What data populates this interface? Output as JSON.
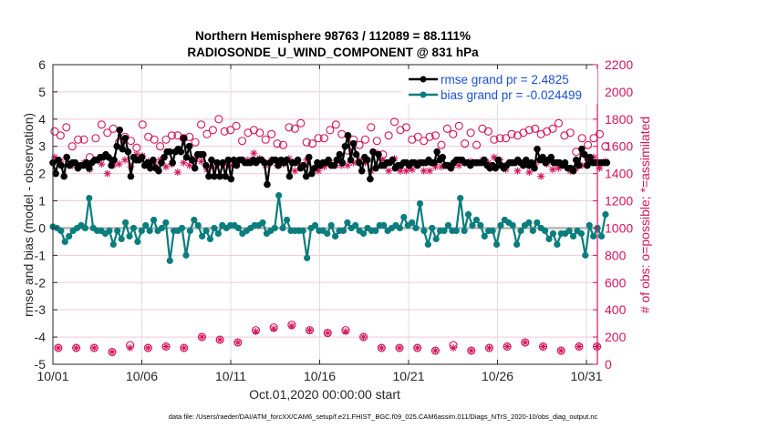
{
  "chart_data": {
    "type": "line",
    "title": [
      "Northern Hemisphere 98763 / 112089 = 88.111%",
      "RADIOSONDE_U_WIND_COMPONENT @ 831 hPa"
    ],
    "xlabel": "Oct.01,2020 00:00:00 start",
    "ylabel": "rmse and bias (model - observation)",
    "ylabel_right": "# of obs: o=possible; *=assimilated",
    "footnote": "data file: /Users/raeder/DAI/ATM_forcXX/CAM6_setup/f.e21.FHIST_BGC.f09_025.CAM6assim.011/Diags_NTrS_2020-10/obs_diag_output.nc",
    "xlim_days": [
      0,
      31.3
    ],
    "ylim": [
      -5,
      6
    ],
    "ylim_right": [
      0,
      2200
    ],
    "x_ticks": [
      {
        "day": 0,
        "label": "10/01"
      },
      {
        "day": 5,
        "label": "10/06"
      },
      {
        "day": 10,
        "label": "10/11"
      },
      {
        "day": 15,
        "label": "10/16"
      },
      {
        "day": 20,
        "label": "10/21"
      },
      {
        "day": 25,
        "label": "10/26"
      },
      {
        "day": 30,
        "label": "10/31"
      }
    ],
    "y_ticks": [
      "-5",
      "-4",
      "-3",
      "-2",
      "-1",
      "0",
      "1",
      "2",
      "3",
      "4",
      "5",
      "6"
    ],
    "y_ticks_right": [
      "0",
      "200",
      "400",
      "600",
      "800",
      "1000",
      "1200",
      "1400",
      "1600",
      "1800",
      "2000",
      "2200"
    ],
    "grid": true,
    "legend_position": "top-right",
    "legend": [
      {
        "label": "rmse grand pr = 2.4825",
        "color": "#000000"
      },
      {
        "label": "bias grand pr = -0.024499",
        "color": "#008080"
      }
    ],
    "colors": {
      "rmse": "#000000",
      "bias": "#0a7d7d",
      "obs": "#d4145a",
      "zero_line": "#b3b3b3",
      "grid": "#f0c9d8"
    },
    "series": [
      {
        "name": "rmse",
        "step_days": 0.25,
        "values": [
          2.4,
          2.0,
          2.5,
          2.3,
          1.9,
          2.6,
          2.3,
          2.4,
          2.4,
          2.2,
          2.3,
          2.3,
          2.4,
          2.2,
          2.4,
          2.5,
          2.5,
          2.6,
          2.6,
          2.7,
          2.6,
          2.3,
          2.5,
          3.0,
          3.6,
          2.9,
          3.3,
          2.8,
          1.9,
          2.6,
          2.5,
          2.5,
          2.6,
          2.3,
          2.4,
          2.2,
          2.5,
          2.2,
          2.1,
          2.4,
          2.6,
          2.8,
          2.8,
          2.4,
          2.8,
          2.9,
          2.8,
          3.3,
          2.6,
          3.0,
          2.5,
          2.2,
          2.7,
          2.7,
          2.7,
          2.3,
          1.9,
          2.5,
          1.9,
          2.4,
          1.9,
          2.4,
          1.9,
          2.5,
          1.8,
          2.5,
          2.3,
          2.5,
          2.5,
          2.4,
          2.4,
          2.4,
          2.5,
          2.4,
          2.5,
          2.5,
          2.4,
          1.6,
          2.4,
          2.5,
          2.5,
          2.3,
          2.5,
          2.4,
          2.5,
          1.9,
          2.4,
          2.4,
          2.5,
          2.2,
          2.3,
          1.9,
          2.6,
          2.0,
          2.2,
          2.4,
          2.3,
          2.4,
          2.4,
          2.5,
          2.3,
          2.3,
          2.5,
          2.7,
          2.4,
          3.0,
          3.4,
          2.5,
          3.1,
          2.7,
          2.4,
          2.1,
          2.6,
          2.5,
          1.8,
          2.8,
          2.2,
          2.7,
          2.3,
          2.3,
          2.4,
          2.4,
          2.5,
          2.2,
          2.3,
          2.3,
          2.4,
          2.4,
          2.3,
          2.4,
          2.4,
          2.3,
          2.4,
          2.4,
          2.4,
          2.5,
          2.4,
          2.4,
          2.8,
          2.5,
          2.6,
          2.3,
          2.3,
          2.2,
          2.4,
          2.5,
          2.5,
          2.5,
          2.4,
          2.4,
          2.3,
          2.4,
          2.4,
          2.4,
          2.4,
          2.5,
          2.3,
          2.2,
          2.3,
          2.2,
          2.5,
          2.3,
          2.2,
          2.3,
          2.4,
          2.4,
          2.4,
          2.5,
          2.4,
          2.3,
          2.5,
          2.3,
          2.4,
          2.2,
          2.9,
          2.5,
          2.6,
          2.4,
          2.5,
          2.6,
          2.4,
          2.4,
          2.4,
          2.3,
          2.4,
          2.2,
          2.2,
          2.1,
          2.5,
          2.3,
          2.9,
          2.7,
          2.3,
          2.6,
          2.4,
          2.4,
          2.4,
          2.4,
          2.4,
          2.4
        ],
        "step_mode": "auto"
      },
      {
        "name": "bias",
        "step_days": 0.25,
        "values": [
          0.05,
          0.0,
          -0.1,
          -0.5,
          -0.3,
          -0.1,
          0.0,
          0.1,
          0.0,
          1.1,
          0.0,
          -0.1,
          -0.1,
          -0.2,
          -0.1,
          -0.6,
          -0.1,
          -0.4,
          0.2,
          -0.3,
          0.0,
          -0.5,
          -0.1,
          0.1,
          -0.1,
          0.3,
          -0.1,
          0.0,
          0.2,
          -1.2,
          -0.1,
          -0.1,
          0.0,
          -1.0,
          -0.1,
          0.3,
          0.1,
          -0.3,
          -0.1,
          -0.4,
          0.0,
          -0.2,
          0.1,
          0.0,
          0.1,
          0.1,
          0.0,
          -0.2,
          -0.1,
          0.0,
          0.1,
          0.1,
          0.2,
          -0.2,
          -0.1,
          0.0,
          1.2,
          0.0,
          0.3,
          -0.1,
          -0.1,
          -0.1,
          -0.1,
          -1.1,
          0.0,
          0.1,
          -0.1,
          -0.1,
          -0.2,
          0.1,
          -0.3,
          -0.1,
          -0.1,
          0.2,
          0.0,
          0.1,
          -0.1,
          -0.2,
          0.0,
          -0.1,
          -0.1,
          0.1,
          0.1,
          -0.1,
          0.0,
          0.1,
          0.0,
          0.4,
          0.1,
          0.2,
          0.0,
          0.9,
          -0.1,
          -0.6,
          0.0,
          -0.4,
          -0.1,
          -0.1,
          0.1,
          -0.1,
          -0.1,
          1.1,
          -0.1,
          0.5,
          0.1,
          0.3,
          0.1,
          -0.3,
          -0.1,
          -0.1,
          -0.6,
          0.1,
          0.3,
          0.2,
          0.1,
          -0.6,
          -0.1,
          0.1,
          0.2,
          -0.1,
          0.2,
          0.0,
          -0.1,
          -0.4,
          -0.2,
          -0.6,
          -0.2,
          -0.2,
          -0.1,
          -0.3,
          -0.1,
          -0.2,
          -1.0,
          0.1,
          -0.3,
          0.0,
          -0.3,
          0.5
        ],
        "step_mode": "auto"
      },
      {
        "name": "obs_possible",
        "axis": "right",
        "marker": "circle-open",
        "step_days": 0.5,
        "values": [
          1710,
          1680,
          1740,
          1600,
          1650,
          1650,
          1520,
          1660,
          1760,
          1700,
          1730,
          1630,
          1670,
          1640,
          1590,
          1760,
          1670,
          1650,
          1600,
          1650,
          1680,
          1680,
          1660,
          1670,
          1630,
          1760,
          1690,
          1720,
          1800,
          1710,
          1720,
          1750,
          1640,
          1700,
          1720,
          1700,
          1650,
          1690,
          1620,
          1610,
          1740,
          1730,
          1770,
          1630,
          1620,
          1660,
          1660,
          1720,
          1760,
          1690,
          1570,
          1650,
          1610,
          1650,
          1740,
          1640,
          1540,
          1680,
          1780,
          1720,
          1740,
          1650,
          1670,
          1640,
          1670,
          1680,
          1610,
          1730,
          1690,
          1750,
          1620,
          1700,
          1610,
          1730,
          1710,
          1650,
          1660,
          1660,
          1690,
          1680,
          1700,
          1720,
          1730,
          1690,
          1710,
          1730,
          1770,
          1680,
          1700,
          1560,
          1660,
          1610,
          1660,
          1690,
          1600
        ],
        "step_mode": "auto"
      },
      {
        "name": "obs_assimilated",
        "axis": "right",
        "marker": "asterisk",
        "step_days": 0.5,
        "values": [
          1520,
          1490,
          1520,
          1460,
          1460,
          1480,
          1430,
          1500,
          1470,
          1400,
          1460,
          1470,
          1500,
          1450,
          1540,
          1530,
          1490,
          1470,
          1500,
          1450,
          1470,
          1410,
          1480,
          1460,
          1510,
          1490,
          1430,
          1450,
          1470,
          1470,
          1460,
          1470,
          1500,
          1500,
          1550,
          1510,
          1460,
          1500,
          1460,
          1470,
          1510,
          1420,
          1460,
          1500,
          1430,
          1420,
          1450,
          1480,
          1460,
          1460,
          1460,
          1480,
          1500,
          1480,
          1420,
          1550,
          1500,
          1420,
          1510,
          1420,
          1420,
          1430,
          1480,
          1420,
          1420,
          1450,
          1450,
          1460,
          1460,
          1460,
          1480,
          1490,
          1480,
          1500,
          1480,
          1520,
          1500,
          1430,
          1480,
          1420,
          1480,
          1410,
          1470,
          1380,
          1470,
          1430,
          1440,
          1460,
          1420,
          1440,
          1460,
          1500,
          1520,
          1440,
          1490
        ],
        "step_mode": "auto"
      },
      {
        "name": "obs_low_possible",
        "axis": "right",
        "marker": "circle-open",
        "step_days": 1,
        "values": [
          120,
          120,
          120,
          90,
          140,
          120,
          130,
          120,
          200,
          180,
          160,
          250,
          270,
          290,
          250,
          230,
          250,
          200,
          120,
          120,
          120,
          100,
          140,
          100,
          120,
          130,
          160,
          130,
          100,
          130,
          130
        ],
        "step_mode": "auto"
      },
      {
        "name": "obs_low_assimilated",
        "axis": "right",
        "marker": "asterisk",
        "step_days": 1,
        "values": [
          120,
          120,
          120,
          90,
          120,
          120,
          130,
          120,
          200,
          180,
          160,
          240,
          260,
          280,
          250,
          230,
          240,
          200,
          120,
          120,
          120,
          100,
          120,
          100,
          120,
          130,
          160,
          130,
          100,
          130,
          130
        ],
        "step_mode": "auto"
      }
    ]
  }
}
